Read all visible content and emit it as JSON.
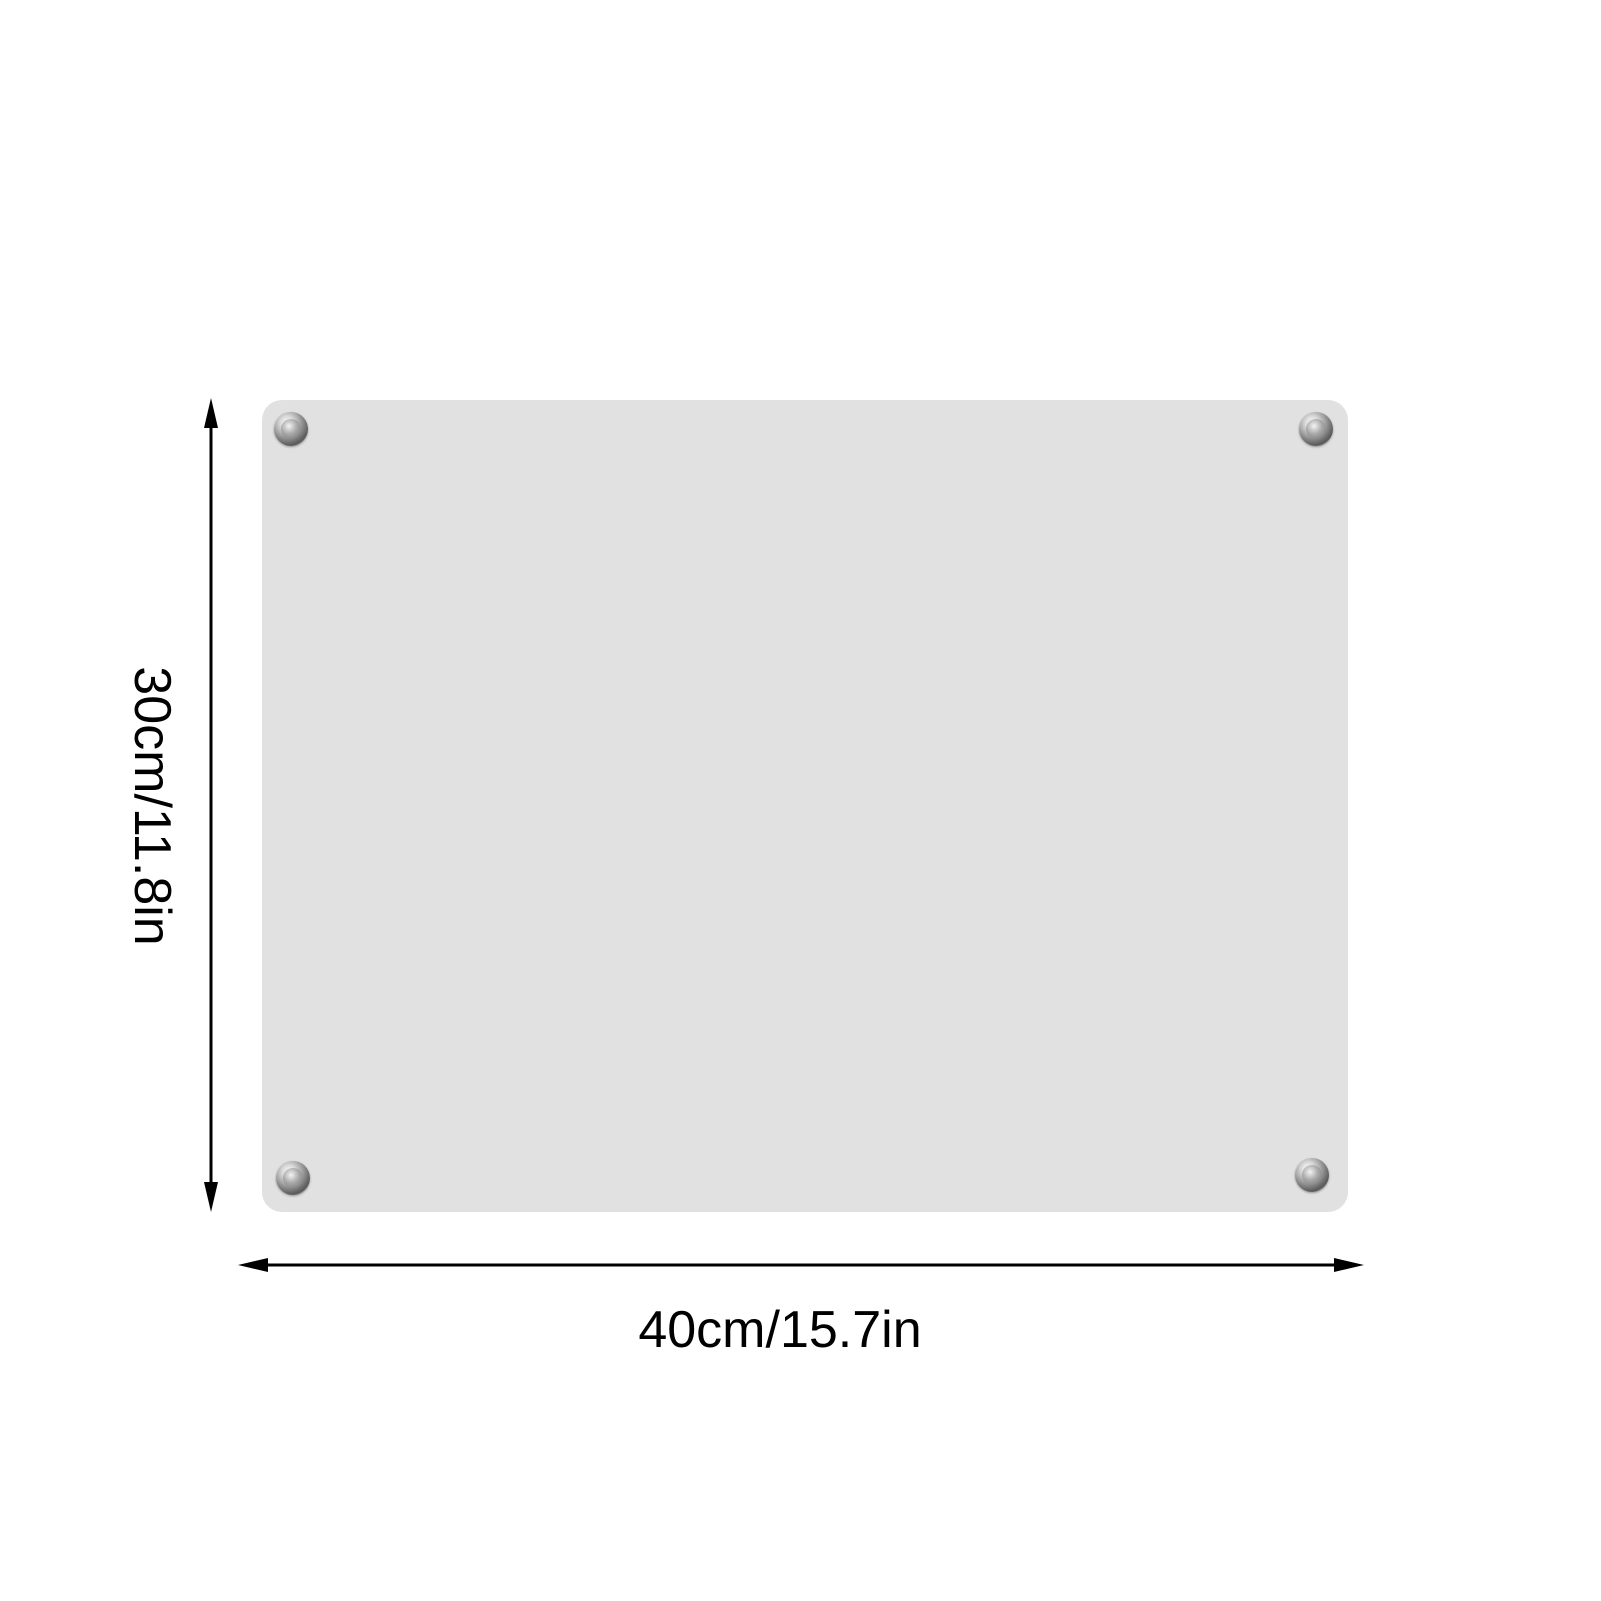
{
  "product": {
    "panel_color": "#e1e1e1",
    "standoffs": [
      "top-left",
      "top-right",
      "bottom-left",
      "bottom-right"
    ]
  },
  "dimensions": {
    "width_label": "40cm/15.7in",
    "height_label": "30cm/11.8in",
    "line_color": "#000000"
  }
}
